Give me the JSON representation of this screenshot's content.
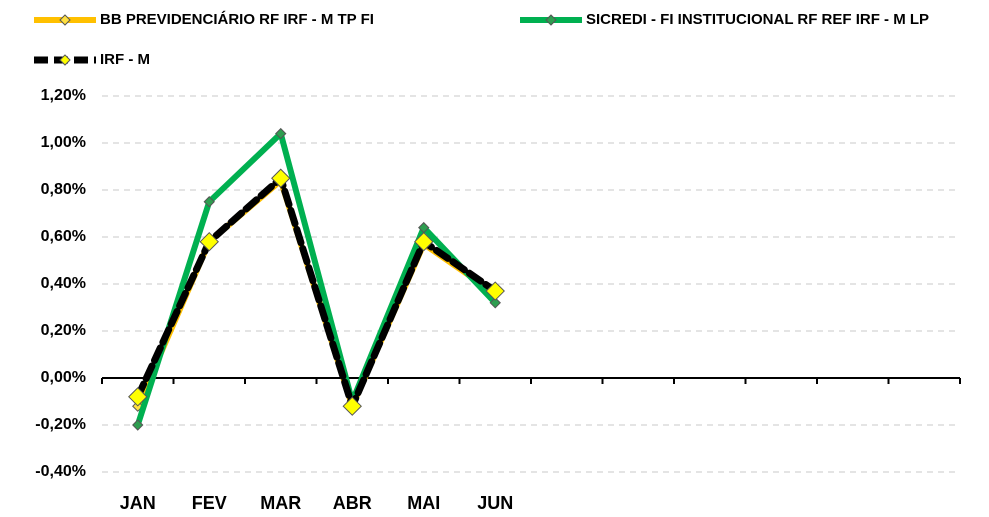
{
  "chart_data": {
    "type": "line",
    "categories": [
      "JAN",
      "FEV",
      "MAR",
      "ABR",
      "MAI",
      "JUN",
      null,
      null,
      null,
      null,
      null,
      null
    ],
    "series": [
      {
        "name": "BB PREVIDENCIÁRIO RF IRF - M TP FI",
        "color": "#ffc000",
        "marker_color": "#ffe040",
        "values": [
          -0.12,
          0.58,
          0.84,
          -0.12,
          0.57,
          0.36,
          null,
          null,
          null,
          null,
          null,
          null
        ]
      },
      {
        "name": "SICREDI - FI INSTITUCIONAL RF REF IRF - M LP",
        "color": "#00b050",
        "marker_color": "#2e9e50",
        "values": [
          -0.2,
          0.75,
          1.04,
          -0.1,
          0.64,
          0.32,
          null,
          null,
          null,
          null,
          null,
          null
        ]
      },
      {
        "name": "IRF - M",
        "color": "#000000",
        "marker_color": "#ffff00",
        "values": [
          -0.08,
          0.58,
          0.85,
          -0.12,
          0.58,
          0.37,
          null,
          null,
          null,
          null,
          null,
          null
        ]
      }
    ],
    "ylim": [
      -0.4,
      1.2
    ],
    "yticks": [
      {
        "value": -0.4,
        "label": "-0,40%"
      },
      {
        "value": -0.2,
        "label": "-0,20%"
      },
      {
        "value": 0,
        "label": "0,00%"
      },
      {
        "value": 0.2,
        "label": "0,20%"
      },
      {
        "value": 0.4,
        "label": "0,40%"
      },
      {
        "value": 0.6,
        "label": "0,60%"
      },
      {
        "value": 0.8,
        "label": "0,80%"
      },
      {
        "value": 1.0,
        "label": "1,00%"
      },
      {
        "value": 1.2,
        "label": "1,20%"
      }
    ],
    "grid": true,
    "legend": "top"
  }
}
